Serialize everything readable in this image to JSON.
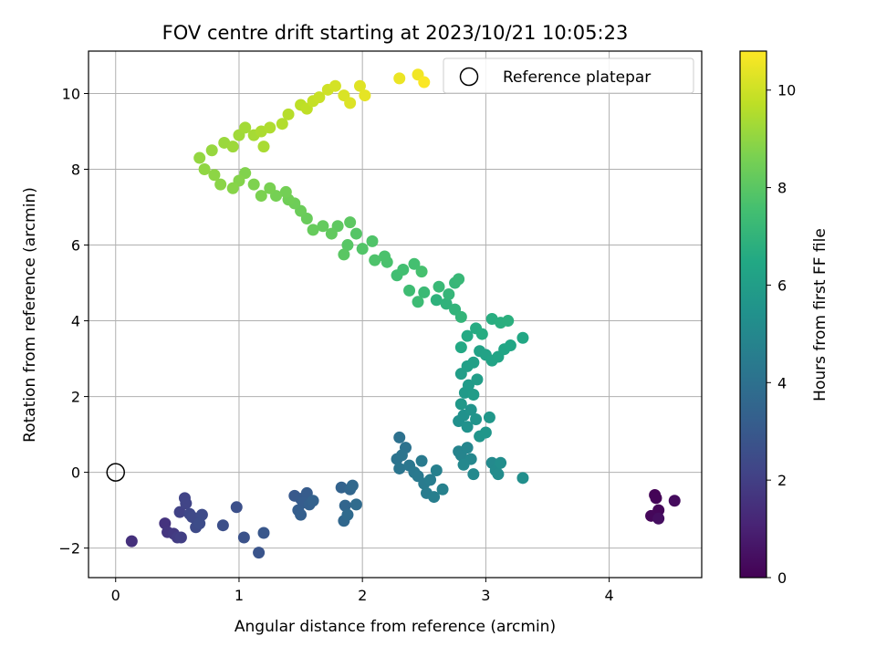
{
  "chart_data": {
    "type": "scatter",
    "title": "FOV centre drift starting at 2023/10/21 10:05:23",
    "xlabel": "Angular distance from reference (arcmin)",
    "ylabel": "Rotation from reference (arcmin)",
    "xlim": [
      -0.22,
      4.75
    ],
    "ylim": [
      -2.78,
      11.12
    ],
    "xticks": [
      0,
      1,
      2,
      3,
      4
    ],
    "yticks": [
      -2,
      0,
      2,
      4,
      6,
      8,
      10
    ],
    "grid": true,
    "legend": {
      "placement": "top-right",
      "entries": [
        "Reference platepar"
      ]
    },
    "colorbar": {
      "label": "Hours from first FF file",
      "range": [
        0,
        10.8
      ],
      "ticks": [
        0,
        2,
        4,
        6,
        8,
        10
      ],
      "colormap": "viridis",
      "low_color": "#440154",
      "high_color": "#fde725"
    },
    "reference_point": {
      "x": 0,
      "y": 0,
      "marker": "hollow-circle"
    },
    "points": [
      [
        4.37,
        -0.6,
        0.05
      ],
      [
        4.38,
        -0.68,
        0.1
      ],
      [
        4.4,
        -1.0,
        0.15
      ],
      [
        4.34,
        -1.15,
        0.2
      ],
      [
        4.53,
        -0.75,
        0.3
      ],
      [
        4.4,
        -1.22,
        0.4
      ],
      [
        0.13,
        -1.82,
        1.5
      ],
      [
        0.4,
        -1.35,
        1.6
      ],
      [
        0.42,
        -1.58,
        1.7
      ],
      [
        0.47,
        -1.62,
        1.8
      ],
      [
        0.5,
        -1.72,
        1.9
      ],
      [
        0.53,
        -1.72,
        2.0
      ],
      [
        0.52,
        -1.05,
        2.1
      ],
      [
        0.56,
        -0.68,
        2.15
      ],
      [
        0.57,
        -0.82,
        2.2
      ],
      [
        0.6,
        -1.1,
        2.3
      ],
      [
        0.62,
        -1.18,
        2.35
      ],
      [
        0.65,
        -1.45,
        2.4
      ],
      [
        0.7,
        -1.12,
        2.45
      ],
      [
        0.68,
        -1.35,
        2.5
      ],
      [
        0.87,
        -1.4,
        2.6
      ],
      [
        0.98,
        -0.92,
        2.65
      ],
      [
        1.04,
        -1.72,
        2.7
      ],
      [
        1.16,
        -2.12,
        2.8
      ],
      [
        1.2,
        -1.6,
        2.9
      ],
      [
        1.45,
        -0.62,
        3.0
      ],
      [
        1.5,
        -0.7,
        3.05
      ],
      [
        1.55,
        -0.55,
        3.1
      ],
      [
        1.52,
        -0.8,
        3.15
      ],
      [
        1.48,
        -1.0,
        3.2
      ],
      [
        1.5,
        -1.12,
        3.25
      ],
      [
        1.57,
        -0.85,
        3.3
      ],
      [
        1.6,
        -0.75,
        3.35
      ],
      [
        1.83,
        -0.4,
        3.4
      ],
      [
        1.86,
        -0.88,
        3.5
      ],
      [
        1.9,
        -0.45,
        3.55
      ],
      [
        1.85,
        -1.28,
        3.6
      ],
      [
        1.92,
        -0.35,
        3.65
      ],
      [
        1.88,
        -1.12,
        3.7
      ],
      [
        1.95,
        -0.85,
        3.75
      ],
      [
        2.3,
        0.92,
        4.0
      ],
      [
        2.35,
        0.65,
        4.05
      ],
      [
        2.28,
        0.35,
        4.1
      ],
      [
        2.32,
        0.45,
        4.15
      ],
      [
        2.3,
        0.1,
        4.2
      ],
      [
        2.38,
        0.18,
        4.25
      ],
      [
        2.42,
        0.0,
        4.3
      ],
      [
        2.45,
        -0.1,
        4.35
      ],
      [
        2.48,
        0.3,
        4.4
      ],
      [
        2.5,
        -0.3,
        4.45
      ],
      [
        2.52,
        -0.55,
        4.5
      ],
      [
        2.55,
        -0.2,
        4.55
      ],
      [
        2.58,
        -0.65,
        4.6
      ],
      [
        2.6,
        0.05,
        4.65
      ],
      [
        2.65,
        -0.45,
        4.7
      ],
      [
        2.78,
        0.55,
        4.8
      ],
      [
        2.8,
        0.45,
        4.85
      ],
      [
        2.85,
        0.65,
        4.9
      ],
      [
        2.88,
        0.35,
        4.95
      ],
      [
        2.82,
        0.2,
        5.0
      ],
      [
        2.9,
        -0.05,
        5.05
      ],
      [
        3.05,
        0.25,
        5.1
      ],
      [
        3.08,
        0.05,
        5.15
      ],
      [
        3.1,
        -0.05,
        5.2
      ],
      [
        3.12,
        0.25,
        5.25
      ],
      [
        3.3,
        -0.15,
        5.3
      ],
      [
        2.78,
        1.35,
        5.35
      ],
      [
        2.82,
        1.5,
        5.4
      ],
      [
        2.85,
        1.2,
        5.45
      ],
      [
        2.88,
        1.65,
        5.5
      ],
      [
        2.92,
        1.4,
        5.55
      ],
      [
        2.95,
        0.95,
        5.6
      ],
      [
        3.0,
        1.05,
        5.65
      ],
      [
        3.03,
        1.45,
        5.7
      ],
      [
        2.8,
        1.8,
        5.75
      ],
      [
        2.83,
        2.1,
        5.8
      ],
      [
        2.86,
        2.3,
        5.85
      ],
      [
        2.9,
        2.05,
        5.9
      ],
      [
        2.93,
        2.45,
        5.95
      ],
      [
        2.8,
        2.6,
        6.0
      ],
      [
        2.85,
        2.8,
        6.05
      ],
      [
        2.9,
        2.9,
        6.1
      ],
      [
        2.95,
        3.2,
        6.15
      ],
      [
        3.0,
        3.1,
        6.2
      ],
      [
        3.05,
        2.95,
        6.25
      ],
      [
        3.1,
        3.05,
        6.3
      ],
      [
        3.15,
        3.25,
        6.35
      ],
      [
        3.2,
        3.35,
        6.4
      ],
      [
        3.3,
        3.55,
        6.45
      ],
      [
        2.8,
        3.3,
        6.5
      ],
      [
        2.85,
        3.6,
        6.55
      ],
      [
        2.92,
        3.8,
        6.6
      ],
      [
        2.97,
        3.65,
        6.65
      ],
      [
        3.05,
        4.05,
        6.7
      ],
      [
        3.12,
        3.95,
        6.75
      ],
      [
        3.18,
        4.0,
        6.8
      ],
      [
        2.6,
        4.55,
        6.9
      ],
      [
        2.68,
        4.45,
        6.95
      ],
      [
        2.75,
        4.3,
        7.0
      ],
      [
        2.8,
        4.1,
        7.05
      ],
      [
        2.7,
        4.7,
        7.1
      ],
      [
        2.75,
        5.0,
        7.15
      ],
      [
        2.78,
        5.1,
        7.2
      ],
      [
        2.62,
        4.9,
        7.25
      ],
      [
        2.5,
        4.75,
        7.3
      ],
      [
        2.45,
        4.5,
        7.35
      ],
      [
        2.38,
        4.8,
        7.4
      ],
      [
        2.28,
        5.2,
        7.45
      ],
      [
        2.33,
        5.35,
        7.5
      ],
      [
        2.42,
        5.5,
        7.55
      ],
      [
        2.48,
        5.3,
        7.6
      ],
      [
        2.2,
        5.55,
        7.65
      ],
      [
        2.18,
        5.7,
        7.7
      ],
      [
        2.1,
        5.6,
        7.75
      ],
      [
        2.08,
        6.1,
        7.8
      ],
      [
        2.0,
        5.9,
        7.85
      ],
      [
        1.95,
        6.3,
        7.9
      ],
      [
        1.88,
        6.0,
        7.95
      ],
      [
        1.85,
        5.75,
        8.0
      ],
      [
        1.9,
        6.6,
        8.05
      ],
      [
        1.8,
        6.5,
        8.1
      ],
      [
        1.75,
        6.3,
        8.15
      ],
      [
        1.68,
        6.5,
        8.2
      ],
      [
        1.6,
        6.4,
        8.25
      ],
      [
        1.55,
        6.7,
        8.3
      ],
      [
        1.5,
        6.9,
        8.35
      ],
      [
        1.45,
        7.1,
        8.4
      ],
      [
        1.4,
        7.2,
        8.45
      ],
      [
        1.38,
        7.4,
        8.5
      ],
      [
        1.3,
        7.3,
        8.55
      ],
      [
        1.25,
        7.5,
        8.6
      ],
      [
        1.18,
        7.3,
        8.65
      ],
      [
        1.12,
        7.6,
        8.7
      ],
      [
        1.05,
        7.9,
        8.75
      ],
      [
        1.0,
        7.7,
        8.8
      ],
      [
        0.95,
        7.5,
        8.85
      ],
      [
        0.85,
        7.6,
        8.9
      ],
      [
        0.8,
        7.85,
        8.95
      ],
      [
        0.72,
        8.0,
        9.0
      ],
      [
        0.68,
        8.3,
        9.05
      ],
      [
        0.78,
        8.5,
        9.1
      ],
      [
        0.88,
        8.7,
        9.15
      ],
      [
        0.95,
        8.6,
        9.2
      ],
      [
        1.0,
        8.9,
        9.25
      ],
      [
        1.05,
        9.1,
        9.3
      ],
      [
        1.12,
        8.9,
        9.35
      ],
      [
        1.2,
        8.6,
        9.4
      ],
      [
        1.18,
        9.0,
        9.45
      ],
      [
        1.25,
        9.1,
        9.5
      ],
      [
        1.35,
        9.2,
        9.55
      ],
      [
        1.4,
        9.45,
        9.6
      ],
      [
        1.5,
        9.7,
        9.7
      ],
      [
        1.55,
        9.6,
        9.75
      ],
      [
        1.6,
        9.8,
        9.85
      ],
      [
        1.65,
        9.9,
        9.9
      ],
      [
        1.72,
        10.1,
        10.0
      ],
      [
        1.78,
        10.2,
        10.1
      ],
      [
        1.85,
        9.95,
        10.2
      ],
      [
        1.9,
        9.75,
        10.25
      ],
      [
        1.98,
        10.2,
        10.3
      ],
      [
        2.02,
        9.95,
        10.4
      ],
      [
        2.3,
        10.4,
        10.5
      ],
      [
        2.45,
        10.5,
        10.6
      ],
      [
        2.5,
        10.3,
        10.75
      ]
    ]
  }
}
